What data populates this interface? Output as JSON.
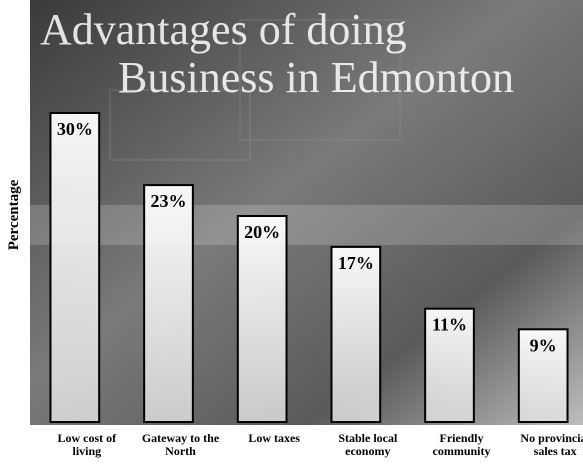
{
  "chart_data": {
    "type": "bar",
    "title": [
      "Advantages of doing",
      "Business in Edmonton"
    ],
    "y_label": "Percentage",
    "categories": [
      "Low cost of living",
      "Gateway to the North",
      "Low taxes",
      "Stable local economy",
      "Friendly community",
      "No provincial sales tax"
    ],
    "values": [
      30,
      23,
      20,
      17,
      11,
      9
    ],
    "value_labels": [
      "30%",
      "23%",
      "20%",
      "17%",
      "11%",
      "9%"
    ],
    "color": "#f4f4f4",
    "ylim": [
      0,
      40
    ]
  }
}
